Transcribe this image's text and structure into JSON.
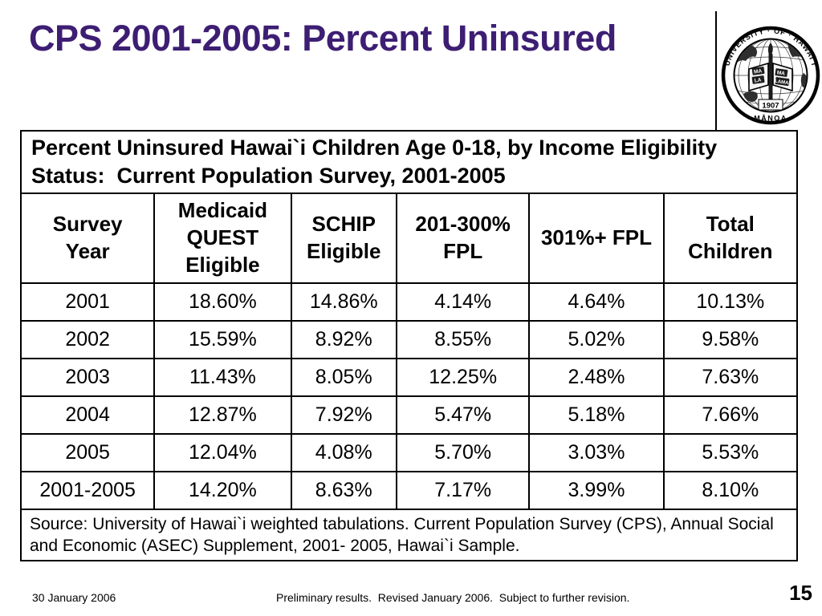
{
  "slide": {
    "title": "CPS 2001-2005: Percent Uninsured",
    "title_color": "#3d1e73",
    "seal": {
      "ring_text_top": "UNIVERSITY · OF · HAWAI`I",
      "ring_text_bottom": "MĀNOA",
      "year": "1907",
      "book_left_line1": "MA",
      "book_left_line2": "LA",
      "book_right_line1": "MA",
      "book_right_line2": "LAMA"
    },
    "footer": {
      "date": "30 January 2006",
      "note": "Preliminary results.  Revised January 2006.  Subject to further revision.",
      "page_number": "15"
    }
  },
  "table": {
    "caption": "Percent Uninsured Hawai`i Children Age 0-18, by Income Eligibility Status:  Current Population Survey, 2001-2005",
    "columns": [
      "Survey Year",
      "Medicaid QUEST Eligible",
      "SCHIP Eligible",
      "201-300% FPL",
      "301%+ FPL",
      "Total Children"
    ],
    "column_widths_pct": [
      17.2,
      17.6,
      13.6,
      17.1,
      17.3,
      17.2
    ],
    "rows": [
      [
        "2001",
        "18.60%",
        "14.86%",
        "4.14%",
        "4.64%",
        "10.13%"
      ],
      [
        "2002",
        "15.59%",
        "8.92%",
        "8.55%",
        "5.02%",
        "9.58%"
      ],
      [
        "2003",
        "11.43%",
        "8.05%",
        "12.25%",
        "2.48%",
        "7.63%"
      ],
      [
        "2004",
        "12.87%",
        "7.92%",
        "5.47%",
        "5.18%",
        "7.66%"
      ],
      [
        "2005",
        "12.04%",
        "4.08%",
        "5.70%",
        "3.03%",
        "5.53%"
      ],
      [
        "2001-2005",
        "14.20%",
        "8.63%",
        "7.17%",
        "3.99%",
        "8.10%"
      ]
    ],
    "source": "Source: University of Hawai`i weighted tabulations. Current Population Survey (CPS), Annual Social and Economic (ASEC) Supplement, 2001- 2005, Hawai`i Sample.",
    "colors": {
      "border": "#000000",
      "background": "#ffffff"
    }
  }
}
